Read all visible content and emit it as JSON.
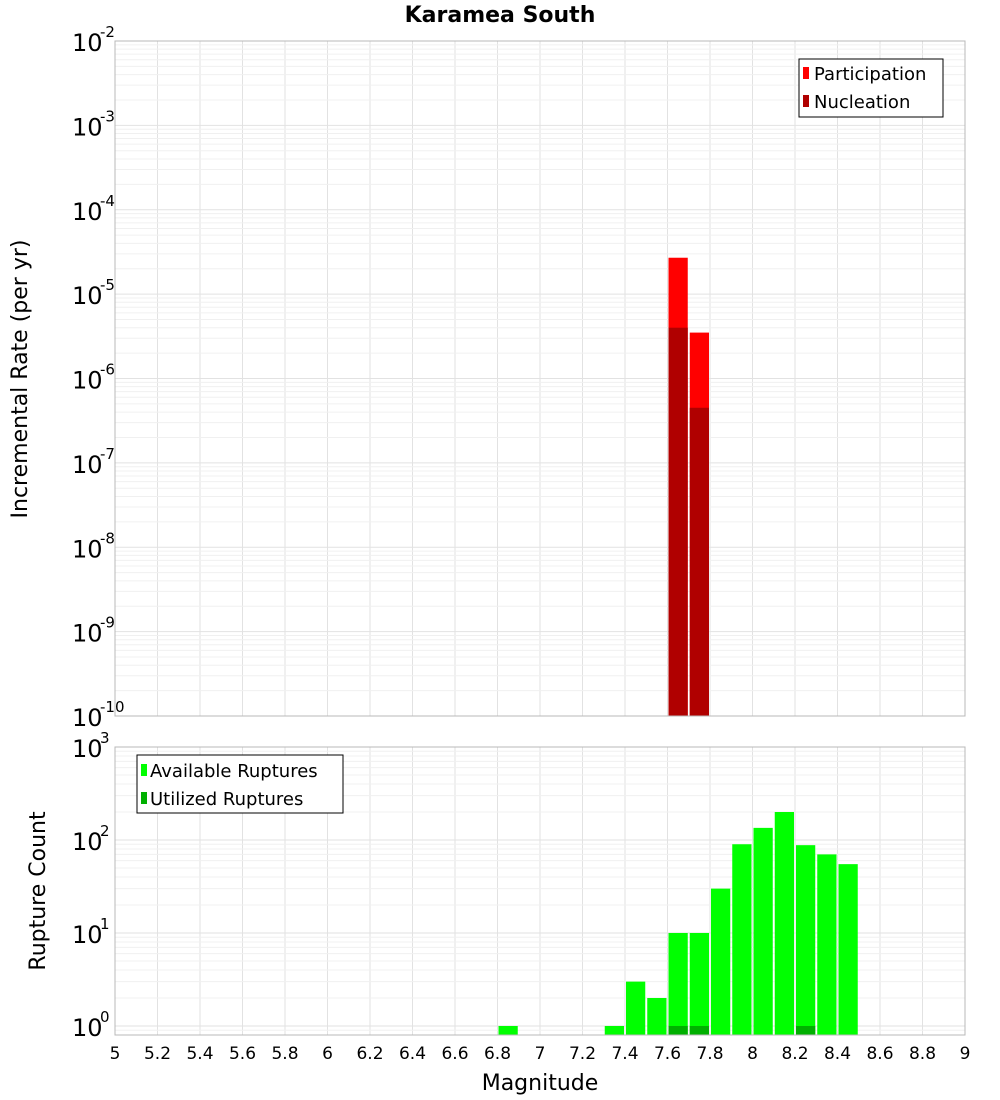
{
  "chart_data": [
    {
      "type": "bar",
      "title": "Karamea South",
      "ylabel": "Incremental Rate (per yr)",
      "xlabel": "",
      "yscale": "log",
      "ylim": [
        1e-10,
        0.01
      ],
      "xlim": [
        5,
        9
      ],
      "bar_width": 0.1,
      "ytick_labels": [
        {
          "value": 1e-10,
          "base": "10",
          "exp": "-10"
        },
        {
          "value": 1e-09,
          "base": "10",
          "exp": "-9"
        },
        {
          "value": 1e-08,
          "base": "10",
          "exp": "-8"
        },
        {
          "value": 1e-07,
          "base": "10",
          "exp": "-7"
        },
        {
          "value": 1e-06,
          "base": "10",
          "exp": "-6"
        },
        {
          "value": 1e-05,
          "base": "10",
          "exp": "-5"
        },
        {
          "value": 0.0001,
          "base": "10",
          "exp": "-4"
        },
        {
          "value": 0.001,
          "base": "10",
          "exp": "-3"
        },
        {
          "value": 0.01,
          "base": "10",
          "exp": "-2"
        }
      ],
      "grid": true,
      "legend_position": "top-right",
      "series": [
        {
          "name": "Participation",
          "color": "#ff0000",
          "x": [
            7.65,
            7.75
          ],
          "values": [
            2.7e-05,
            3.5e-06
          ]
        },
        {
          "name": "Nucleation",
          "color": "#b00000",
          "x": [
            7.65,
            7.75
          ],
          "values": [
            4e-06,
            4.5e-07
          ]
        }
      ]
    },
    {
      "type": "bar",
      "title": "",
      "ylabel": "Rupture Count",
      "xlabel": "Magnitude",
      "yscale": "log",
      "ylim": [
        0.8,
        1000
      ],
      "xlim": [
        5,
        9
      ],
      "bar_width": 0.1,
      "ytick_labels": [
        {
          "value": 1,
          "base": "10",
          "exp": "0"
        },
        {
          "value": 10,
          "base": "10",
          "exp": "1"
        },
        {
          "value": 100,
          "base": "10",
          "exp": "2"
        },
        {
          "value": 1000,
          "base": "10",
          "exp": "3"
        }
      ],
      "xtick_labels": [
        "5",
        "5.2",
        "5.4",
        "5.6",
        "5.8",
        "6",
        "6.2",
        "6.4",
        "6.6",
        "6.8",
        "7",
        "7.2",
        "7.4",
        "7.6",
        "7.8",
        "8",
        "8.2",
        "8.4",
        "8.6",
        "8.8",
        "9"
      ],
      "grid": true,
      "legend_position": "top-left",
      "series": [
        {
          "name": "Available Ruptures",
          "color": "#00ff00",
          "x": [
            6.85,
            7.35,
            7.45,
            7.55,
            7.65,
            7.75,
            7.85,
            7.95,
            8.05,
            8.15,
            8.25,
            8.35,
            8.45
          ],
          "values": [
            1,
            1,
            3,
            2,
            10,
            10,
            30,
            90,
            135,
            200,
            88,
            70,
            55
          ]
        },
        {
          "name": "Utilized Ruptures",
          "color": "#00b000",
          "x": [
            7.65,
            7.75,
            8.25
          ],
          "values": [
            1,
            1,
            1
          ]
        }
      ]
    }
  ]
}
